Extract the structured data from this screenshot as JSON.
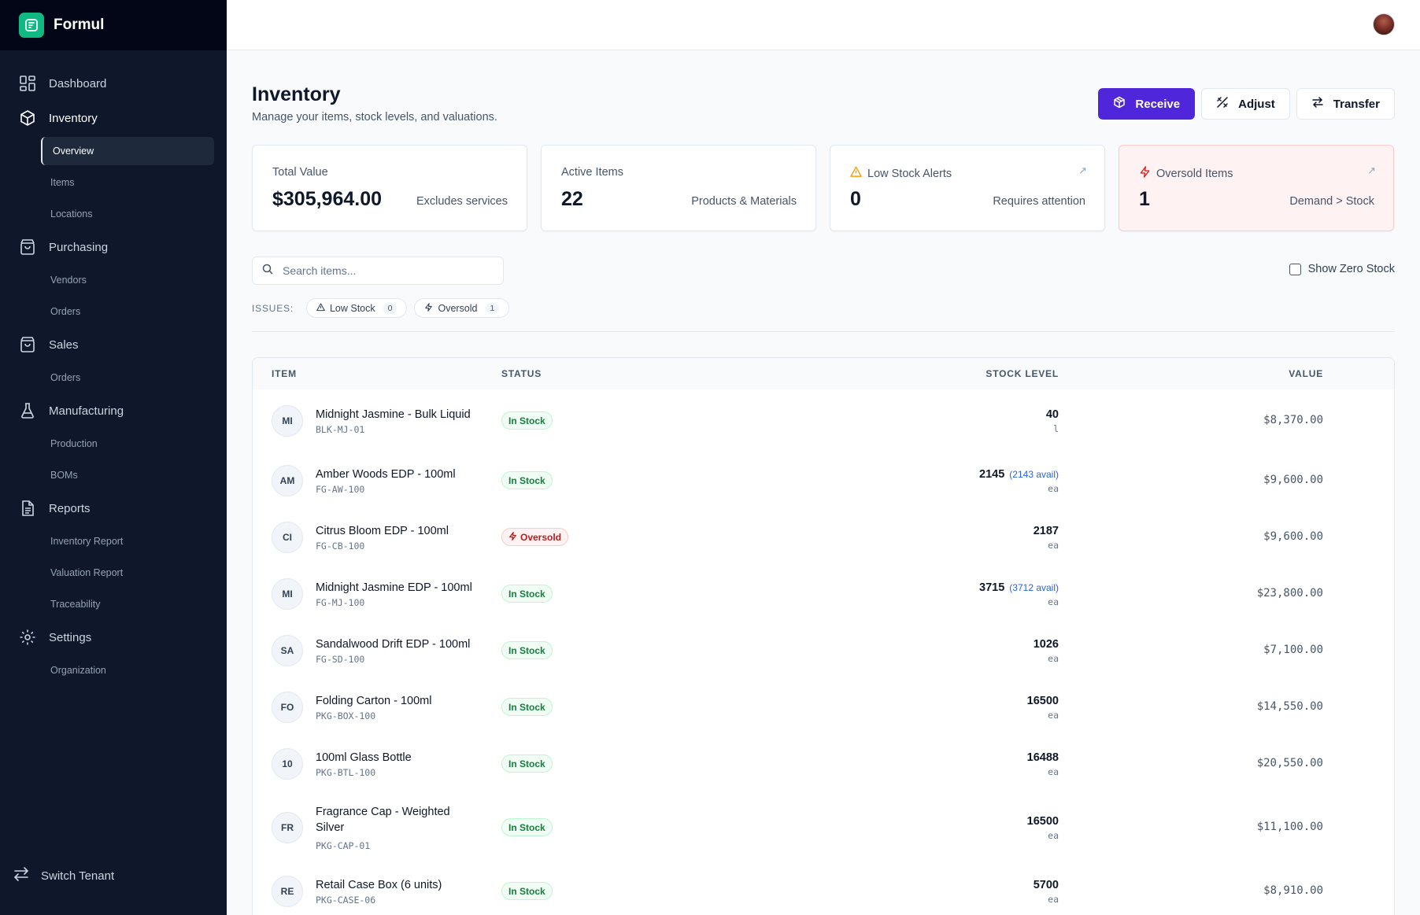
{
  "app": {
    "name": "Formul"
  },
  "sidebar": {
    "groups": [
      {
        "label": "Dashboard",
        "icon": "grid-icon"
      },
      {
        "label": "Inventory",
        "icon": "box-icon",
        "subs": [
          "Overview",
          "Items",
          "Locations"
        ]
      },
      {
        "label": "Purchasing",
        "icon": "bag-icon",
        "subs": [
          "Vendors",
          "Orders"
        ]
      },
      {
        "label": "Sales",
        "icon": "bag-icon",
        "subs": [
          "Orders"
        ]
      },
      {
        "label": "Manufacturing",
        "icon": "flask-icon",
        "subs": [
          "Production",
          "BOMs"
        ]
      },
      {
        "label": "Reports",
        "icon": "file-icon",
        "subs": [
          "Inventory Report",
          "Valuation Report",
          "Traceability"
        ]
      },
      {
        "label": "Settings",
        "icon": "gear-icon",
        "subs": [
          "Organization"
        ]
      }
    ],
    "switch_tenant": "Switch Tenant"
  },
  "page": {
    "title": "Inventory",
    "subtitle": "Manage your items, stock levels, and valuations.",
    "actions": {
      "receive": "Receive",
      "adjust": "Adjust",
      "transfer": "Transfer"
    }
  },
  "cards": {
    "total_value": {
      "label": "Total Value",
      "value": "$305,964.00",
      "note": "Excludes services"
    },
    "active_items": {
      "label": "Active Items",
      "value": "22",
      "note": "Products & Materials"
    },
    "low_stock": {
      "label": "Low Stock Alerts",
      "value": "0",
      "note": "Requires attention"
    },
    "oversold": {
      "label": "Oversold Items",
      "value": "1",
      "note": "Demand > Stock"
    }
  },
  "search": {
    "placeholder": "Search items..."
  },
  "filters": {
    "show_zero_stock": "Show Zero Stock",
    "issues_label": "ISSUES:",
    "low_stock": {
      "label": "Low Stock",
      "count": "0"
    },
    "oversold": {
      "label": "Oversold",
      "count": "1"
    }
  },
  "table": {
    "headers": {
      "item": "ITEM",
      "status": "STATUS",
      "stock": "STOCK LEVEL",
      "value": "VALUE"
    },
    "rows": [
      {
        "initials": "MI",
        "name": "Midnight Jasmine - Bulk Liquid",
        "sku": "BLK-MJ-01",
        "status": "In Stock",
        "qty": "40",
        "avail": "",
        "unit": "l",
        "value": "$8,370.00"
      },
      {
        "initials": "AM",
        "name": "Amber Woods EDP - 100ml",
        "sku": "FG-AW-100",
        "status": "In Stock",
        "qty": "2145",
        "avail": "(2143 avail)",
        "unit": "ea",
        "value": "$9,600.00"
      },
      {
        "initials": "CI",
        "name": "Citrus Bloom EDP - 100ml",
        "sku": "FG-CB-100",
        "status": "Oversold",
        "qty": "2187",
        "avail": "",
        "unit": "ea",
        "value": "$9,600.00"
      },
      {
        "initials": "MI",
        "name": "Midnight Jasmine EDP - 100ml",
        "sku": "FG-MJ-100",
        "status": "In Stock",
        "qty": "3715",
        "avail": "(3712 avail)",
        "unit": "ea",
        "value": "$23,800.00"
      },
      {
        "initials": "SA",
        "name": "Sandalwood Drift EDP - 100ml",
        "sku": "FG-SD-100",
        "status": "In Stock",
        "qty": "1026",
        "avail": "",
        "unit": "ea",
        "value": "$7,100.00"
      },
      {
        "initials": "FO",
        "name": "Folding Carton - 100ml",
        "sku": "PKG-BOX-100",
        "status": "In Stock",
        "qty": "16500",
        "avail": "",
        "unit": "ea",
        "value": "$14,550.00"
      },
      {
        "initials": "10",
        "name": "100ml Glass Bottle",
        "sku": "PKG-BTL-100",
        "status": "In Stock",
        "qty": "16488",
        "avail": "",
        "unit": "ea",
        "value": "$20,550.00"
      },
      {
        "initials": "FR",
        "name": "Fragrance Cap - Weighted Silver",
        "sku": "PKG-CAP-01",
        "status": "In Stock",
        "qty": "16500",
        "avail": "",
        "unit": "ea",
        "value": "$11,100.00"
      },
      {
        "initials": "RE",
        "name": "Retail Case Box (6 units)",
        "sku": "PKG-CASE-06",
        "status": "In Stock",
        "qty": "5700",
        "avail": "",
        "unit": "ea",
        "value": "$8,910.00"
      }
    ]
  },
  "colors": {
    "sidebar": "#0f172a",
    "brand": "#10b981",
    "primary": "#4f26d9",
    "ok": "#15803d",
    "bad": "#b91c1c",
    "link": "#2563eb"
  }
}
